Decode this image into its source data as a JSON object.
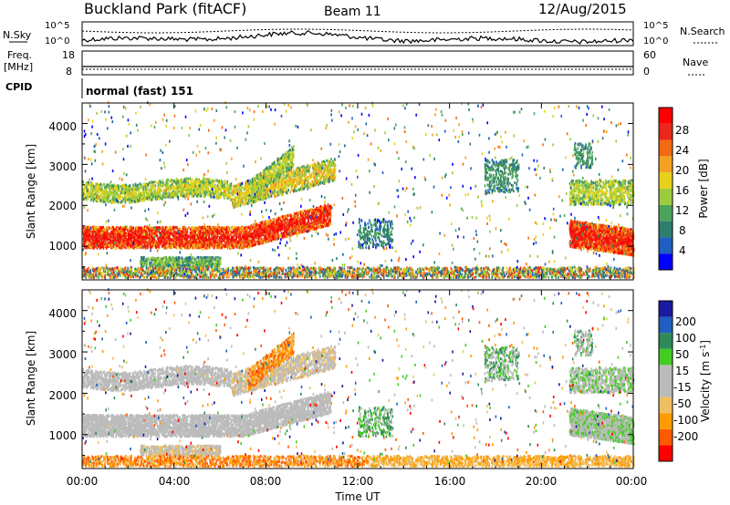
{
  "header": {
    "station": "Buckland Park (fitACF)",
    "beam": "Beam 11",
    "date": "12/Aug/2015"
  },
  "top_panels": {
    "left_labels": [
      "N.Sky",
      "Freq.",
      "[MHz]",
      "CPID"
    ],
    "right_labels": [
      "N.Search",
      "Nave"
    ],
    "sky_axis_left": [
      "10^5",
      "10^0"
    ],
    "sky_axis_right": [
      "10^5",
      "10^0"
    ],
    "freq_axis_left": [
      "18",
      "8"
    ],
    "freq_axis_right": [
      "60",
      "0"
    ],
    "cpid_text": "normal (fast) 151"
  },
  "colors": {
    "power": [
      "#0000ff",
      "#1f5fbf",
      "#2e7d6e",
      "#4ca45c",
      "#9bcc3c",
      "#e6d21a",
      "#f5a020",
      "#f26a12",
      "#e8281a",
      "#ff0000"
    ],
    "velocity": [
      "#ff0000",
      "#ff5a00",
      "#ff9a00",
      "#f0c060",
      "#bbbbbb",
      "#bbbbbb",
      "#44cc22",
      "#2e8b57",
      "#1f5fbf",
      "#1a1aa0"
    ]
  },
  "chart_data": [
    {
      "type": "heatmap",
      "title": "",
      "xlabel": "Time UT",
      "ylabel": "Slant Range [km]",
      "x_ticks": [
        "00:00",
        "04:00",
        "08:00",
        "12:00",
        "16:00",
        "20:00",
        "00:00"
      ],
      "x_range_hours": [
        0,
        24
      ],
      "ylim": [
        180,
        4500
      ],
      "y_ticks": [
        "1000",
        "2000",
        "3000",
        "4000"
      ],
      "colorbar": {
        "label": "Power [dB]",
        "range": [
          0,
          32
        ],
        "ticks": [
          "4",
          "8",
          "12",
          "16",
          "20",
          "24",
          "28"
        ]
      }
    },
    {
      "type": "heatmap",
      "title": "",
      "xlabel": "Time UT",
      "ylabel": "Slant Range [km]",
      "x_ticks": [
        "00:00",
        "04:00",
        "08:00",
        "12:00",
        "16:00",
        "20:00",
        "00:00"
      ],
      "x_range_hours": [
        0,
        24
      ],
      "ylim": [
        180,
        4500
      ],
      "y_ticks": [
        "1000",
        "2000",
        "3000",
        "4000"
      ],
      "colorbar": {
        "label": "Velocity [m s^-1]",
        "ticks": [
          "-200",
          "-100",
          "-50",
          "-15",
          "15",
          "50",
          "100",
          "200"
        ]
      }
    }
  ]
}
